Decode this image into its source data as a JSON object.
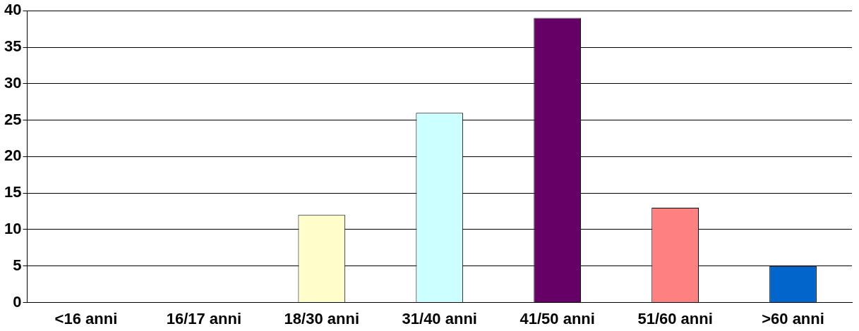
{
  "chart_data": {
    "type": "bar",
    "categories": [
      "<16 anni",
      "16/17 anni",
      "18/30 anni",
      "31/40 anni",
      "41/50 anni",
      "51/60 anni",
      ">60 anni"
    ],
    "values": [
      0,
      0,
      12,
      26,
      39,
      13,
      5
    ],
    "colors": [
      "#7878cc",
      "#6b2450",
      "#ffffcc",
      "#ccffff",
      "#660066",
      "#ff8080",
      "#0066cc"
    ],
    "ylim": [
      0,
      40
    ],
    "yticks": [
      0,
      5,
      10,
      15,
      20,
      25,
      30,
      35,
      40
    ],
    "grid": "y",
    "legend": false
  }
}
